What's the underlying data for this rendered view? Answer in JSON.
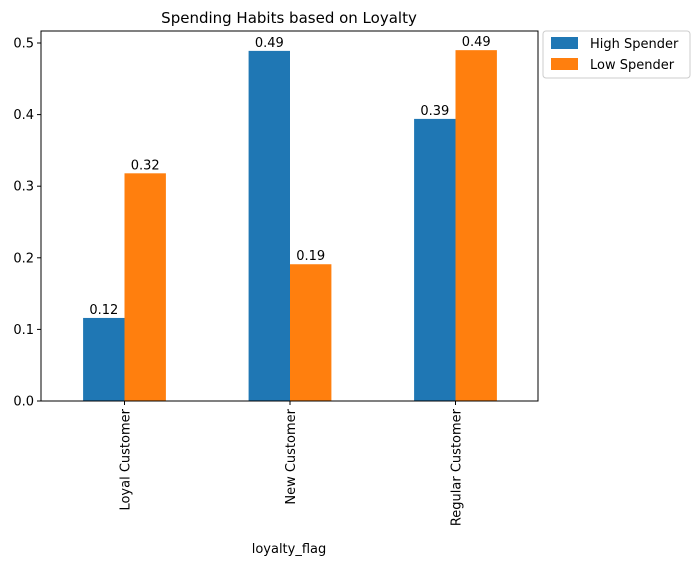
{
  "chart_data": {
    "type": "bar",
    "title": "Spending Habits based on Loyalty",
    "xlabel": "loyalty_flag",
    "ylabel": "",
    "ylim": [
      0,
      0.5
    ],
    "yticks": [
      "0.0",
      "0.1",
      "0.2",
      "0.3",
      "0.4",
      "0.5"
    ],
    "categories": [
      "Loyal Customer",
      "New Customer",
      "Regular Customer"
    ],
    "series": [
      {
        "name": "High Spender",
        "color": "#1f77b4",
        "values": [
          0.116,
          0.489,
          0.394
        ],
        "labels": [
          "0.12",
          "0.49",
          "0.39"
        ]
      },
      {
        "name": "Low Spender",
        "color": "#ff7f0e",
        "values": [
          0.318,
          0.191,
          0.49
        ],
        "labels": [
          "0.32",
          "0.19",
          "0.49"
        ]
      }
    ],
    "legend_position": "outside-top-right",
    "grid": false
  }
}
